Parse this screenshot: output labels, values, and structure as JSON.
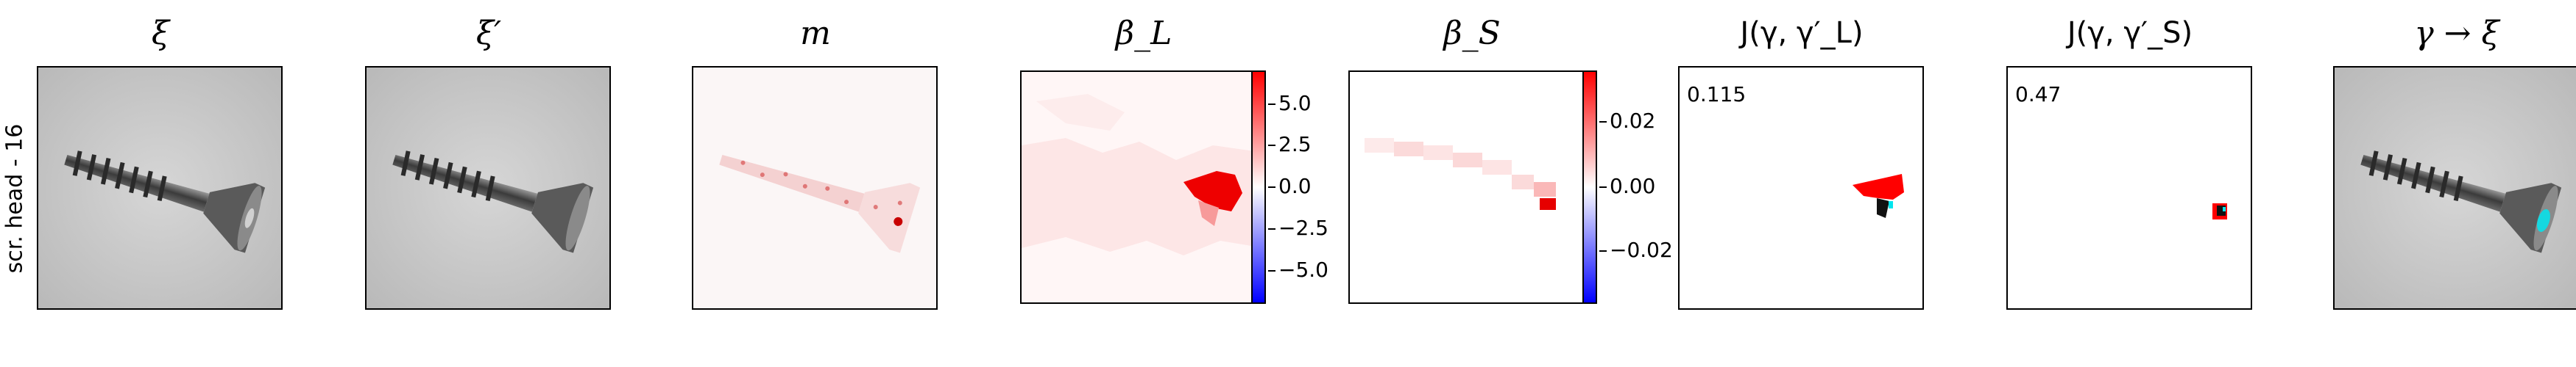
{
  "row_label": "scr. head - 16",
  "panels": [
    {
      "title": "ξ"
    },
    {
      "title": "ξ′"
    },
    {
      "title": "m"
    },
    {
      "title": "β_L"
    },
    {
      "title": "β_S"
    },
    {
      "title": "J(γ, γ′_L)",
      "value": "0.115"
    },
    {
      "title": "J(γ, γ′_S)",
      "value": "0.47"
    },
    {
      "title": "γ → ξ"
    }
  ],
  "colorbar_L": {
    "ticks": [
      "5.0",
      "2.5",
      "0.0",
      "−2.5",
      "−5.0"
    ]
  },
  "colorbar_S": {
    "ticks": [
      "0.02",
      "0.00",
      "−0.02"
    ]
  },
  "colors": {
    "positive": "#ff0000",
    "negative": "#0000ff",
    "highlight": "#00e5ee"
  }
}
